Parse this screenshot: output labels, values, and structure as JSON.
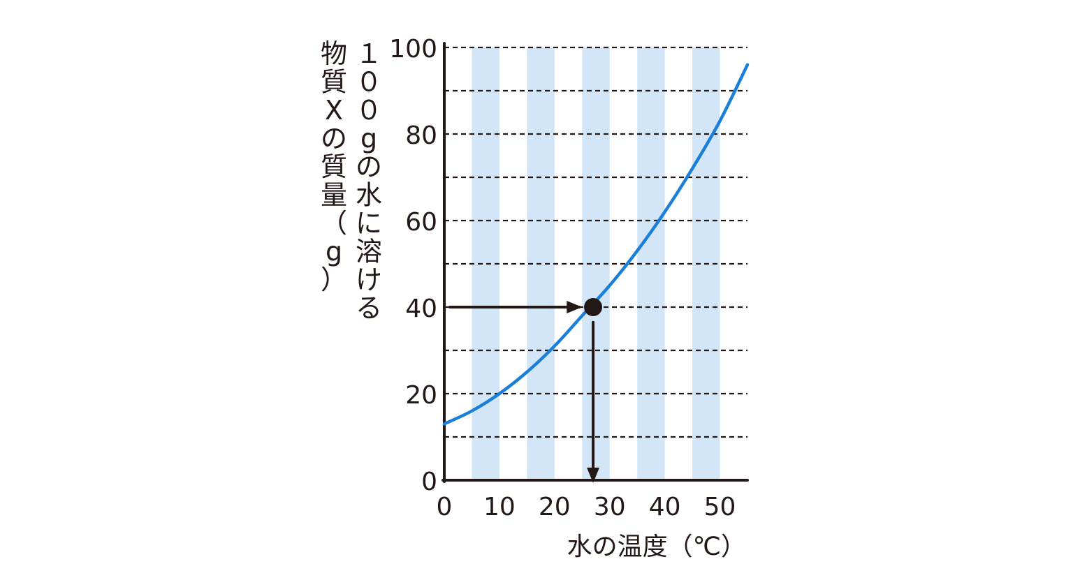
{
  "chart_data": {
    "type": "line",
    "xlabel": "水の温度（℃）",
    "ylabel_lines": [
      "１００gの水に溶ける",
      "物質Xの質量（g）"
    ],
    "x_ticks": [
      "0",
      "10",
      "20",
      "30",
      "40",
      "50"
    ],
    "y_ticks": [
      "0",
      "20",
      "40",
      "60",
      "80",
      "100"
    ],
    "xlim": [
      0,
      55
    ],
    "ylim": [
      0,
      100
    ],
    "y_gridlines": [
      10,
      20,
      30,
      40,
      50,
      60,
      70,
      80,
      90,
      100
    ],
    "grid": "dashed horizontal",
    "column_bands": [
      [
        5,
        10
      ],
      [
        15,
        20
      ],
      [
        25,
        30
      ],
      [
        35,
        40
      ],
      [
        45,
        50
      ]
    ],
    "series": [
      {
        "x": [
          0,
          5,
          10,
          15,
          20,
          25,
          30,
          35,
          40,
          45,
          50,
          55
        ],
        "values": [
          13,
          16,
          20,
          25,
          31,
          38,
          45,
          53,
          62,
          72,
          83,
          96
        ],
        "color": "#1b7fd8"
      }
    ],
    "highlight_point": {
      "x": 27,
      "y": 40
    },
    "guide_arrows": [
      {
        "from": [
          0,
          40
        ],
        "to": [
          24.5,
          40
        ]
      },
      {
        "from": [
          27,
          36.5
        ],
        "to": [
          27,
          0
        ]
      }
    ]
  },
  "colors": {
    "band": "#d3e6f8",
    "line": "#1b7fd8",
    "ink": "#231815"
  }
}
